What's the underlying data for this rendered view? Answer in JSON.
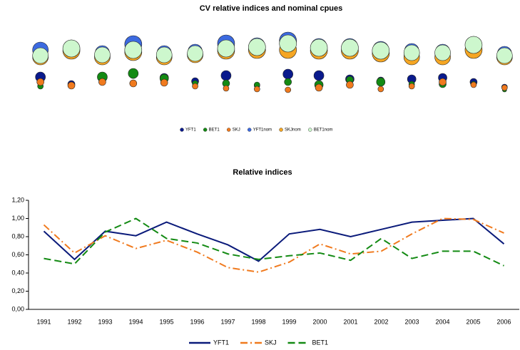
{
  "chart_data": [
    {
      "type": "bubble",
      "title": "CV relative indices and nominal cpues",
      "categories": [
        null,
        null,
        null,
        null,
        null,
        null,
        null,
        null,
        null,
        null,
        null,
        null,
        null,
        null,
        null,
        null
      ],
      "ylim": [
        0,
        1.3
      ],
      "series": [
        {
          "name": "YFT1",
          "color": "#0a1a8c",
          "values": [
            0.62,
            0.52,
            0.62,
            0.66,
            0.61,
            0.56,
            0.64,
            0.5,
            0.66,
            0.64,
            0.59,
            0.57,
            0.59,
            0.61,
            0.55,
            0.48
          ],
          "sizes": [
            0.7,
            0.5,
            0.6,
            0.6,
            0.6,
            0.5,
            0.7,
            0.4,
            0.7,
            0.7,
            0.6,
            0.5,
            0.6,
            0.6,
            0.5,
            0.4
          ]
        },
        {
          "name": "BET1",
          "color": "#138a13",
          "values": [
            0.49,
            0.51,
            0.62,
            0.67,
            0.6,
            0.53,
            0.53,
            0.51,
            0.55,
            0.51,
            0.58,
            0.55,
            0.52,
            0.52,
            0.52,
            0.44
          ],
          "sizes": [
            0.4,
            0.4,
            0.7,
            0.7,
            0.6,
            0.4,
            0.5,
            0.4,
            0.5,
            0.6,
            0.5,
            0.6,
            0.4,
            0.5,
            0.4,
            0.3
          ]
        },
        {
          "name": "SKJ",
          "color": "#f07a1e",
          "values": [
            0.55,
            0.5,
            0.55,
            0.53,
            0.54,
            0.49,
            0.46,
            0.45,
            0.44,
            0.47,
            0.51,
            0.45,
            0.49,
            0.55,
            0.51,
            0.47
          ],
          "sizes": [
            0.5,
            0.5,
            0.5,
            0.5,
            0.5,
            0.4,
            0.4,
            0.4,
            0.4,
            0.5,
            0.5,
            0.4,
            0.4,
            0.5,
            0.4,
            0.4
          ]
        },
        {
          "name": "YFT1nom",
          "color": "#3c6ae0",
          "values": [
            1.0,
            1.03,
            0.96,
            1.08,
            0.96,
            0.98,
            1.09,
            1.06,
            1.13,
            1.05,
            1.05,
            1.01,
            0.99,
            0.98,
            1.08,
            0.95
          ],
          "sizes": [
            1.1,
            1.1,
            1.0,
            1.2,
            1.0,
            1.0,
            1.2,
            1.1,
            1.2,
            1.1,
            1.1,
            1.1,
            1.0,
            1.0,
            1.1,
            1.0
          ]
        },
        {
          "name": "SKJnom",
          "color": "#f5a623",
          "values": [
            0.9,
            0.99,
            0.9,
            0.97,
            0.9,
            0.93,
            0.99,
            1.0,
            1.0,
            0.99,
            0.99,
            0.95,
            0.9,
            0.9,
            1.0,
            0.9
          ],
          "sizes": [
            1.1,
            1.2,
            1.1,
            1.2,
            1.1,
            1.1,
            1.2,
            1.2,
            1.2,
            1.2,
            1.2,
            1.2,
            1.1,
            1.1,
            1.2,
            1.1
          ]
        },
        {
          "name": "BET1nom",
          "color": "#cdf7cd",
          "values": [
            0.92,
            1.02,
            0.93,
            1.0,
            0.93,
            0.95,
            1.02,
            1.04,
            1.09,
            1.03,
            1.03,
            0.99,
            0.96,
            0.96,
            1.07,
            0.92
          ],
          "sizes": [
            1.1,
            1.2,
            1.1,
            1.2,
            1.1,
            1.1,
            1.2,
            1.2,
            1.2,
            1.2,
            1.2,
            1.2,
            1.1,
            1.1,
            1.2,
            1.1
          ]
        }
      ]
    },
    {
      "type": "line",
      "title": "Relative indices",
      "categories": [
        "1991",
        "1992",
        "1993",
        "1994",
        "1995",
        "1996",
        "1997",
        "1998",
        "1999",
        "2000",
        "2001",
        "2002",
        "2003",
        "2004",
        "2005",
        "2006"
      ],
      "ylim": [
        0,
        1.2
      ],
      "yticks": [
        {
          "value": 0,
          "label": "0,00"
        },
        {
          "value": 0.2,
          "label": "0,20"
        },
        {
          "value": 0.4,
          "label": "0,40"
        },
        {
          "value": 0.6,
          "label": "0,60"
        },
        {
          "value": 0.8,
          "label": "0,80"
        },
        {
          "value": 1.0,
          "label": "1,00"
        },
        {
          "value": 1.2,
          "label": "1,20"
        }
      ],
      "grid": false,
      "series": [
        {
          "name": "YFT1",
          "color": "#0a1a7a",
          "dash": "solid",
          "values": [
            0.86,
            0.55,
            0.86,
            0.81,
            0.96,
            0.83,
            0.71,
            0.53,
            0.83,
            0.88,
            0.8,
            0.88,
            0.96,
            0.98,
            1.0,
            0.72
          ]
        },
        {
          "name": "SKJ",
          "color": "#f07a1e",
          "dash": "dashdot",
          "values": [
            0.93,
            0.62,
            0.81,
            0.67,
            0.76,
            0.63,
            0.46,
            0.41,
            0.52,
            0.72,
            0.61,
            0.64,
            0.83,
            1.0,
            0.99,
            0.84
          ]
        },
        {
          "name": "BET1",
          "color": "#138a13",
          "dash": "dashed",
          "values": [
            0.56,
            0.5,
            0.85,
            1.0,
            0.78,
            0.73,
            0.61,
            0.55,
            0.59,
            0.62,
            0.54,
            0.78,
            0.56,
            0.64,
            0.64,
            0.48
          ]
        }
      ]
    }
  ]
}
